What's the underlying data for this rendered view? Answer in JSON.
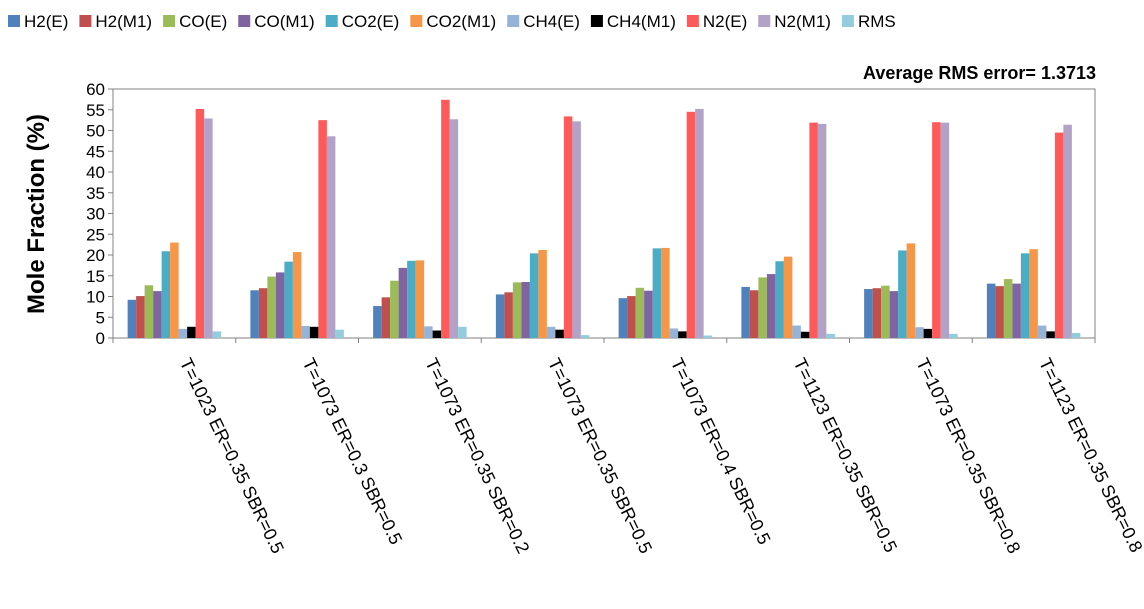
{
  "chart_data": {
    "type": "bar",
    "ylabel": "Mole Fraction (%)",
    "xlabel": "",
    "annotation": "Average RMS error= 1.3713",
    "ylim": [
      0,
      60
    ],
    "yticks": [
      0,
      5,
      10,
      15,
      20,
      25,
      30,
      35,
      40,
      45,
      50,
      55,
      60
    ],
    "grid": false,
    "legend_position": "top",
    "categories": [
      "T=1023 ER=0.35 SBR=0.5",
      "T=1073 ER=0.3 SBR=0.5",
      "T=1073 ER=0.35 SBR=0.2",
      "T=1073 ER=0.35 SBR=0.5",
      "T=1073 ER=0.4 SBR=0.5",
      "T=1123 ER=0.35 SBR=0.5",
      "T=1073 ER=0.35 SBR=0.8",
      "T=1123 ER=0.35 SBR=0.8"
    ],
    "series": [
      {
        "name": "H2(E)",
        "color": "#4F81BD",
        "values": [
          9.2,
          11.5,
          7.7,
          10.5,
          9.6,
          12.3,
          11.8,
          13.1
        ]
      },
      {
        "name": "H2(M1)",
        "color": "#C0504D",
        "values": [
          10.1,
          12.0,
          9.8,
          11.0,
          10.1,
          11.5,
          12.0,
          12.5
        ]
      },
      {
        "name": "CO(E)",
        "color": "#9BBB59",
        "values": [
          12.7,
          14.8,
          13.8,
          13.4,
          12.1,
          14.6,
          12.6,
          14.2
        ]
      },
      {
        "name": "CO(M1)",
        "color": "#8064A2",
        "values": [
          11.3,
          15.8,
          16.9,
          13.5,
          11.4,
          15.4,
          11.3,
          13.1
        ]
      },
      {
        "name": "CO2(E)",
        "color": "#4BACC6",
        "values": [
          20.9,
          18.4,
          18.6,
          20.4,
          21.6,
          18.5,
          21.1,
          20.4
        ]
      },
      {
        "name": "CO2(M1)",
        "color": "#F79646",
        "values": [
          23.0,
          20.7,
          18.7,
          21.2,
          21.7,
          19.6,
          22.8,
          21.4
        ]
      },
      {
        "name": "CH4(E)",
        "color": "#95B3D7",
        "values": [
          2.2,
          2.9,
          2.8,
          2.7,
          2.3,
          3.0,
          2.6,
          3.0
        ]
      },
      {
        "name": "CH4(M1)",
        "color": "#000000",
        "values": [
          2.7,
          2.7,
          1.8,
          2.0,
          1.6,
          1.5,
          2.2,
          1.6
        ]
      },
      {
        "name": "N2(E)",
        "color": "#FF5A5A",
        "values": [
          55.2,
          52.5,
          57.4,
          53.4,
          54.5,
          51.9,
          52.0,
          49.5
        ]
      },
      {
        "name": "N2(M1)",
        "color": "#B2A2C7",
        "values": [
          52.9,
          48.6,
          52.7,
          52.2,
          55.2,
          51.6,
          51.9,
          51.4
        ]
      },
      {
        "name": "RMS",
        "color": "#93CDDD",
        "values": [
          1.6,
          2.0,
          2.7,
          0.7,
          0.6,
          1.0,
          1.0,
          1.2
        ]
      }
    ]
  }
}
